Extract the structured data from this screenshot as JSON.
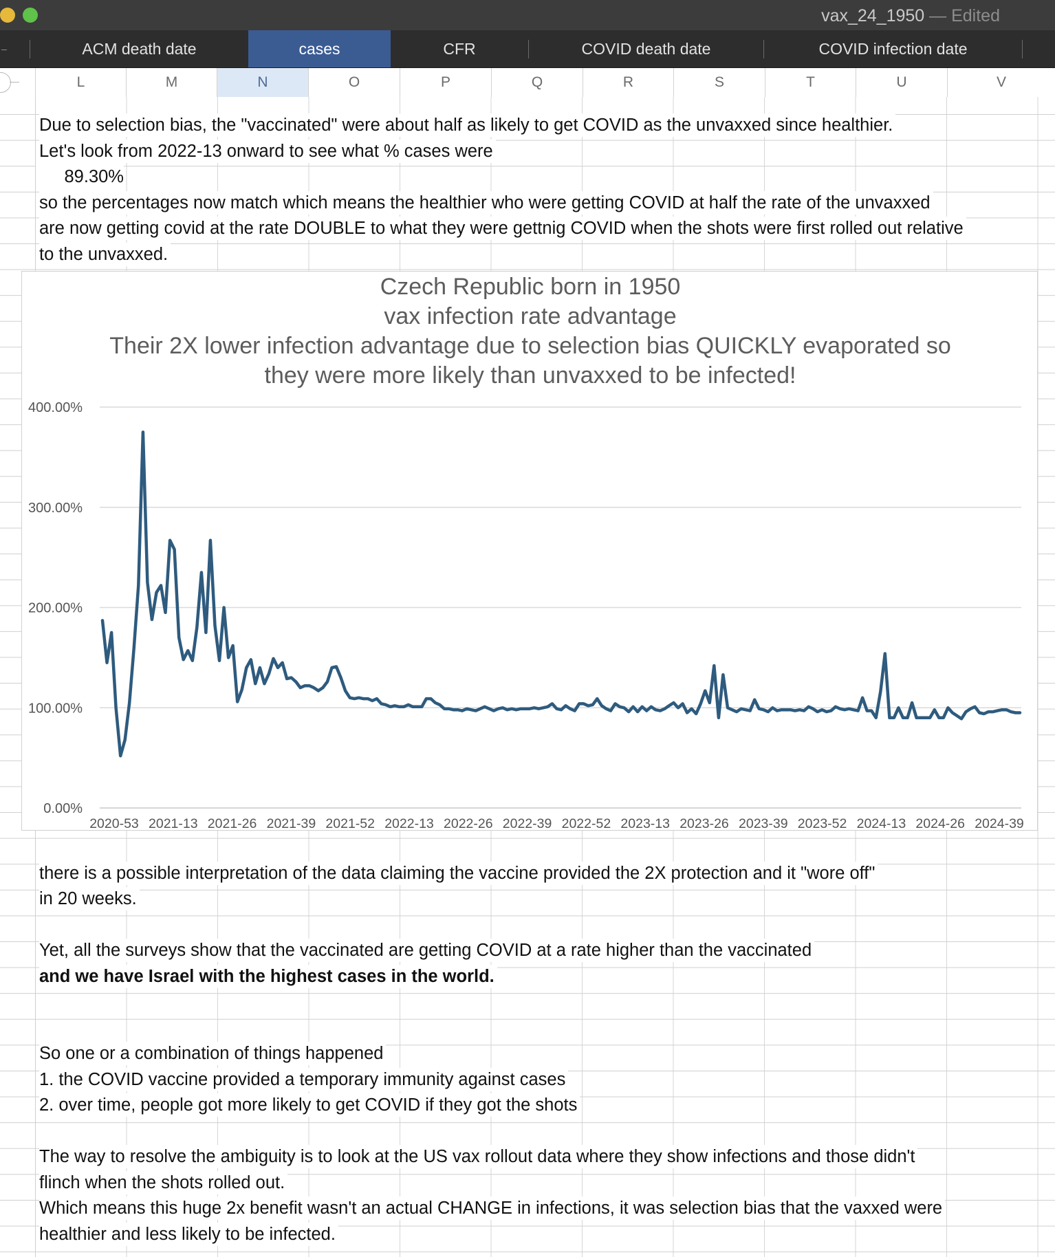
{
  "window": {
    "title": "vax_24_1950",
    "status": "— Edited"
  },
  "tabs": [
    {
      "label": "ACM death date",
      "active": false
    },
    {
      "label": "cases",
      "active": true
    },
    {
      "label": "CFR",
      "active": false
    },
    {
      "label": "COVID death date",
      "active": false
    },
    {
      "label": "COVID infection date",
      "active": false
    }
  ],
  "columns": [
    "L",
    "M",
    "N",
    "O",
    "P",
    "Q",
    "R",
    "S",
    "T",
    "U",
    "V"
  ],
  "selected_column": "N",
  "cells": {
    "row1": "Due to selection bias, the \"vaccinated\" were about half as likely to get COVID as the unvaxxed since healthier.",
    "row2": "Let's look from 2022-13 onward to see what % cases were",
    "row3_value": "89.30%",
    "row4": "so the percentages now match which means the healthier who were getting COVID at half the rate of the unvaxxed",
    "row5": "are now getting covid at the rate DOUBLE to what they were gettnig COVID when the shots were first rolled out relative",
    "row6": "to the unvaxxed.",
    "after1": "there is a possible interpretation of the data claiming the vaccine provided the 2X protection and it \"wore off\"",
    "after2": "in 20 weeks.",
    "after3": "Yet, all the surveys show that the vaccinated are getting COVID at a rate higher than the vaccinated",
    "after4": "and we have Israel with the highest cases in the world.",
    "after5": "So one or a combination of things happened",
    "after6": "1. the COVID vaccine provided a temporary immunity against cases",
    "after7": "2.  over time, people got more likely to get COVID if they got the shots",
    "after8": "The way to resolve the ambiguity is to look at the US vax rollout data where they show infections and those didn't",
    "after9": "flinch when the shots rolled out.",
    "after10": "Which means this huge 2x benefit wasn't an actual CHANGE in infections, it was selection bias that the vaxxed were",
    "after11": "healthier and less likely to be infected."
  },
  "chart_data": {
    "type": "line",
    "title_lines": [
      "Czech Republic born in 1950",
      "vax infection rate advantage",
      "Their  2X lower infection advantage due to selection bias QUICKLY evaporated so",
      "they were more likely than unvaxxed to be infected!"
    ],
    "ylim": [
      0,
      400
    ],
    "y_ticks": [
      "0.00%",
      "100.00%",
      "200.00%",
      "300.00%",
      "400.00%"
    ],
    "x_tick_labels": [
      "2020-53",
      "2021-13",
      "2021-26",
      "2021-39",
      "2021-52",
      "2022-13",
      "2022-26",
      "2022-39",
      "2022-52",
      "2023-13",
      "2023-26",
      "2023-39",
      "2023-52",
      "2024-13",
      "2024-26",
      "2024-39"
    ],
    "grid": true,
    "legend": "none",
    "line_color": "#2e5b7e",
    "values": [
      187,
      145,
      175,
      100,
      52,
      68,
      105,
      160,
      222,
      375,
      225,
      188,
      215,
      222,
      195,
      267,
      258,
      170,
      148,
      157,
      147,
      180,
      235,
      175,
      267,
      182,
      147,
      200,
      150,
      162,
      106,
      118,
      140,
      148,
      124,
      140,
      124,
      134,
      149,
      140,
      145,
      129,
      130,
      126,
      120,
      122,
      122,
      120,
      117,
      120,
      126,
      140,
      141,
      130,
      117,
      110,
      109,
      110,
      109,
      109,
      107,
      109,
      104,
      103,
      101,
      102,
      101,
      101,
      103,
      101,
      101,
      101,
      109,
      109,
      105,
      103,
      99,
      99,
      98,
      98,
      97,
      99,
      98,
      97,
      99,
      101,
      99,
      97,
      99,
      100,
      98,
      99,
      98,
      99,
      99,
      99,
      100,
      99,
      100,
      101,
      104,
      99,
      98,
      102,
      99,
      97,
      104,
      104,
      102,
      103,
      109,
      102,
      99,
      97,
      104,
      101,
      100,
      96,
      101,
      96,
      101,
      97,
      101,
      98,
      97,
      99,
      102,
      105,
      100,
      104,
      95,
      99,
      94,
      104,
      117,
      105,
      142,
      90,
      133,
      100,
      98,
      96,
      99,
      98,
      97,
      108,
      99,
      98,
      96,
      100,
      97,
      98,
      98,
      98,
      97,
      98,
      97,
      101,
      99,
      96,
      98,
      96,
      97,
      101,
      99,
      98,
      99,
      98,
      97,
      110,
      97,
      97,
      90,
      116,
      154,
      90,
      90,
      100,
      90,
      90,
      105,
      90,
      90,
      90,
      90,
      98,
      90,
      90,
      100,
      95,
      92,
      89,
      96,
      99,
      101,
      95,
      94,
      96,
      96,
      97,
      98,
      98,
      96,
      95,
      95
    ]
  }
}
